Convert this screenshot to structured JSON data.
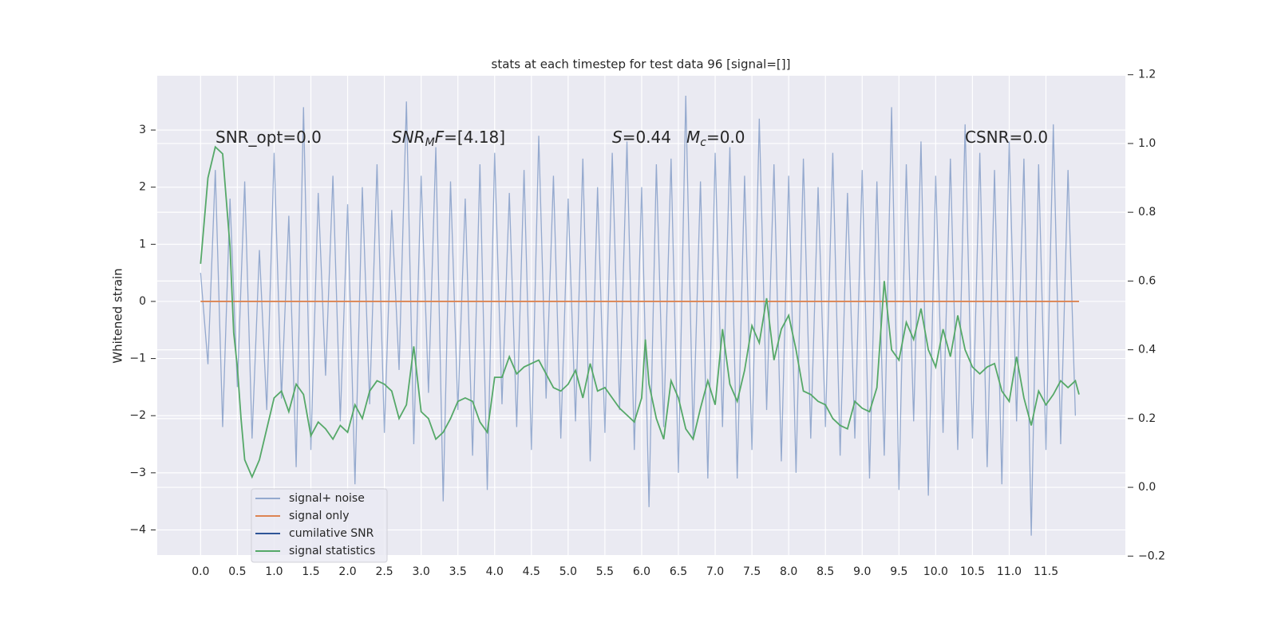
{
  "chart_data": {
    "type": "line",
    "title": "stats at each timestep for test data 96 [signal=[]]",
    "ylabel": "Whitened strain",
    "xlim": [
      -0.59,
      12.58
    ],
    "ylim": [
      -4.44,
      3.95
    ],
    "y2lim": [
      -0.197,
      1.197
    ],
    "xticks": [
      {
        "value": 0,
        "label": "0.0"
      },
      {
        "value": 0.5,
        "label": "0.5"
      },
      {
        "value": 1,
        "label": "1.0"
      },
      {
        "value": 1.5,
        "label": "1.5"
      },
      {
        "value": 2,
        "label": "2.0"
      },
      {
        "value": 2.5,
        "label": "2.5"
      },
      {
        "value": 3,
        "label": "3.0"
      },
      {
        "value": 3.5,
        "label": "3.5"
      },
      {
        "value": 4,
        "label": "4.0"
      },
      {
        "value": 4.5,
        "label": "4.5"
      },
      {
        "value": 5,
        "label": "5.0"
      },
      {
        "value": 5.5,
        "label": "5.5"
      },
      {
        "value": 6,
        "label": "6.0"
      },
      {
        "value": 6.5,
        "label": "6.5"
      },
      {
        "value": 7,
        "label": "7.0"
      },
      {
        "value": 7.5,
        "label": "7.5"
      },
      {
        "value": 8,
        "label": "8.0"
      },
      {
        "value": 8.5,
        "label": "8.5"
      },
      {
        "value": 9,
        "label": "9.0"
      },
      {
        "value": 9.5,
        "label": "9.5"
      },
      {
        "value": 10,
        "label": "10.0"
      },
      {
        "value": 10.5,
        "label": "10.5"
      },
      {
        "value": 11,
        "label": "11.0"
      },
      {
        "value": 11.5,
        "label": "11.5"
      }
    ],
    "yticks": [
      {
        "value": -4,
        "label": "−4"
      },
      {
        "value": -3,
        "label": "−3"
      },
      {
        "value": -2,
        "label": "−2"
      },
      {
        "value": -1,
        "label": "−1"
      },
      0,
      1,
      2,
      3
    ],
    "y2ticks": [
      {
        "value": -0.2,
        "label": "−0.2"
      },
      {
        "value": 0,
        "label": "0.0"
      },
      0.2,
      0.4,
      0.6,
      0.8,
      {
        "value": 1,
        "label": "1.0"
      },
      1.2
    ],
    "grid": true,
    "legend": "lower left",
    "annotations": [
      [
        {
          "text": "SNR_opt=0.0"
        }
      ],
      [
        {
          "text": "SNR",
          "style": "italic"
        },
        {
          "text": "M",
          "style": "sub"
        },
        {
          "text": "F",
          "style": "italic"
        },
        {
          "text": "=[4.18]"
        }
      ],
      [
        {
          "text": "S",
          "style": "italic"
        },
        {
          "text": "=0.44"
        }
      ],
      [
        {
          "text": "M",
          "style": "italic"
        },
        {
          "text": "c",
          "style": "sub"
        },
        {
          "text": "=0.0"
        }
      ],
      [
        {
          "text": "CSNR=0.0"
        }
      ]
    ],
    "series": [
      {
        "name": "signal+ noise",
        "color": "#4c72b0",
        "x": [
          0,
          0.1,
          0.2,
          0.3,
          0.4,
          0.5,
          0.6,
          0.7,
          0.8,
          0.9,
          1,
          1.1,
          1.2,
          1.3,
          1.4,
          1.5,
          1.6,
          1.7,
          1.8,
          1.9,
          2,
          2.1,
          2.2,
          2.3,
          2.4,
          2.5,
          2.6,
          2.7,
          2.8,
          2.9,
          3,
          3.1,
          3.2,
          3.3,
          3.4,
          3.5,
          3.6,
          3.7,
          3.8,
          3.9,
          4,
          4.1,
          4.2,
          4.3,
          4.4,
          4.5,
          4.6,
          4.7,
          4.8,
          4.9,
          5,
          5.1,
          5.2,
          5.3,
          5.4,
          5.5,
          5.6,
          5.7,
          5.8,
          5.9,
          6,
          6.1,
          6.2,
          6.3,
          6.4,
          6.5,
          6.6,
          6.7,
          6.8,
          6.9,
          7,
          7.1,
          7.2,
          7.3,
          7.4,
          7.5,
          7.6,
          7.7,
          7.8,
          7.9,
          8,
          8.1,
          8.2,
          8.3,
          8.4,
          8.5,
          8.6,
          8.7,
          8.8,
          8.9,
          9,
          9.1,
          9.2,
          9.3,
          9.4,
          9.5,
          9.6,
          9.7,
          9.8,
          9.9,
          10,
          10.1,
          10.2,
          10.3,
          10.4,
          10.5,
          10.6,
          10.7,
          10.8,
          10.9,
          11,
          11.1,
          11.2,
          11.3,
          11.4,
          11.5,
          11.6,
          11.7,
          11.8,
          11.9
        ],
        "values": [
          0.5,
          -1.1,
          2.3,
          -2.2,
          1.8,
          -1.5,
          2.1,
          -2.4,
          0.9,
          -1.9,
          2.6,
          -1.7,
          1.5,
          -2.9,
          3.4,
          -2.6,
          1.9,
          -1.3,
          2.2,
          -2.1,
          1.7,
          -3.2,
          2.0,
          -1.8,
          2.4,
          -2.3,
          1.6,
          -1.2,
          3.5,
          -2.5,
          2.2,
          -1.6,
          2.7,
          -3.5,
          2.1,
          -1.9,
          1.8,
          -2.7,
          2.4,
          -3.3,
          2.6,
          -1.8,
          1.9,
          -2.2,
          2.3,
          -2.6,
          2.9,
          -1.7,
          2.2,
          -2.4,
          1.8,
          -2.1,
          2.5,
          -2.8,
          2.0,
          -2.3,
          2.6,
          -1.9,
          2.8,
          -2.6,
          2.0,
          -3.6,
          2.4,
          -2.2,
          2.5,
          -3.0,
          3.6,
          -2.4,
          2.1,
          -3.1,
          2.6,
          -2.2,
          2.7,
          -3.1,
          2.2,
          -2.6,
          3.2,
          -1.9,
          2.4,
          -2.8,
          2.2,
          -3.0,
          2.5,
          -2.4,
          2.0,
          -2.2,
          2.6,
          -2.7,
          1.9,
          -2.4,
          2.3,
          -3.1,
          2.1,
          -2.7,
          3.4,
          -3.3,
          2.4,
          -2.1,
          2.8,
          -3.4,
          2.2,
          -2.3,
          2.5,
          -2.6,
          3.1,
          -2.4,
          2.6,
          -2.9,
          2.3,
          -3.2,
          2.8,
          -2.1,
          2.5,
          -4.1,
          2.4,
          -2.6,
          3.1,
          -2.5,
          2.3,
          -2.0
        ]
      },
      {
        "name": "signal only",
        "color": "#dd8452",
        "x": [
          0,
          11.95
        ],
        "values": [
          0,
          0
        ]
      },
      {
        "name": "cumilative SNR",
        "color": "#2f5597",
        "x": [],
        "values": []
      },
      {
        "name": "signal statistics",
        "color": "#55a868",
        "axis": "y2",
        "x": [
          0,
          0.1,
          0.2,
          0.3,
          0.4,
          0.45,
          0.5,
          0.55,
          0.6,
          0.7,
          0.8,
          0.9,
          1,
          1.1,
          1.2,
          1.3,
          1.4,
          1.5,
          1.6,
          1.7,
          1.8,
          1.9,
          2,
          2.1,
          2.2,
          2.3,
          2.4,
          2.5,
          2.6,
          2.7,
          2.8,
          2.9,
          3,
          3.1,
          3.2,
          3.3,
          3.4,
          3.5,
          3.6,
          3.7,
          3.8,
          3.9,
          4,
          4.1,
          4.2,
          4.3,
          4.4,
          4.5,
          4.6,
          4.7,
          4.8,
          4.9,
          5,
          5.1,
          5.2,
          5.3,
          5.4,
          5.5,
          5.6,
          5.7,
          5.8,
          5.9,
          6,
          6.05,
          6.1,
          6.2,
          6.3,
          6.4,
          6.5,
          6.6,
          6.7,
          6.8,
          6.9,
          7,
          7.1,
          7.2,
          7.3,
          7.4,
          7.5,
          7.6,
          7.7,
          7.8,
          7.9,
          8,
          8.1,
          8.2,
          8.3,
          8.4,
          8.5,
          8.6,
          8.7,
          8.8,
          8.9,
          9,
          9.1,
          9.2,
          9.3,
          9.4,
          9.5,
          9.6,
          9.7,
          9.8,
          9.9,
          10,
          10.1,
          10.2,
          10.3,
          10.4,
          10.5,
          10.6,
          10.7,
          10.8,
          10.9,
          11,
          11.1,
          11.2,
          11.3,
          11.4,
          11.5,
          11.6,
          11.7,
          11.8,
          11.9,
          11.95
        ],
        "values": [
          0.65,
          0.9,
          0.99,
          0.97,
          0.7,
          0.45,
          0.35,
          0.2,
          0.08,
          0.03,
          0.08,
          0.17,
          0.26,
          0.28,
          0.22,
          0.3,
          0.27,
          0.15,
          0.19,
          0.17,
          0.14,
          0.18,
          0.16,
          0.24,
          0.2,
          0.28,
          0.31,
          0.3,
          0.28,
          0.2,
          0.24,
          0.41,
          0.22,
          0.2,
          0.14,
          0.16,
          0.2,
          0.25,
          0.26,
          0.25,
          0.19,
          0.16,
          0.32,
          0.32,
          0.38,
          0.33,
          0.35,
          0.36,
          0.37,
          0.33,
          0.29,
          0.28,
          0.3,
          0.34,
          0.26,
          0.36,
          0.28,
          0.29,
          0.26,
          0.23,
          0.21,
          0.19,
          0.26,
          0.43,
          0.3,
          0.2,
          0.14,
          0.31,
          0.26,
          0.17,
          0.14,
          0.23,
          0.31,
          0.24,
          0.46,
          0.3,
          0.25,
          0.34,
          0.47,
          0.42,
          0.55,
          0.37,
          0.46,
          0.5,
          0.4,
          0.28,
          0.27,
          0.25,
          0.24,
          0.2,
          0.18,
          0.17,
          0.25,
          0.23,
          0.22,
          0.29,
          0.6,
          0.4,
          0.37,
          0.48,
          0.43,
          0.52,
          0.4,
          0.35,
          0.46,
          0.38,
          0.5,
          0.4,
          0.35,
          0.33,
          0.35,
          0.36,
          0.28,
          0.25,
          0.38,
          0.26,
          0.18,
          0.28,
          0.24,
          0.27,
          0.31,
          0.29,
          0.31,
          0.27
        ]
      }
    ]
  }
}
